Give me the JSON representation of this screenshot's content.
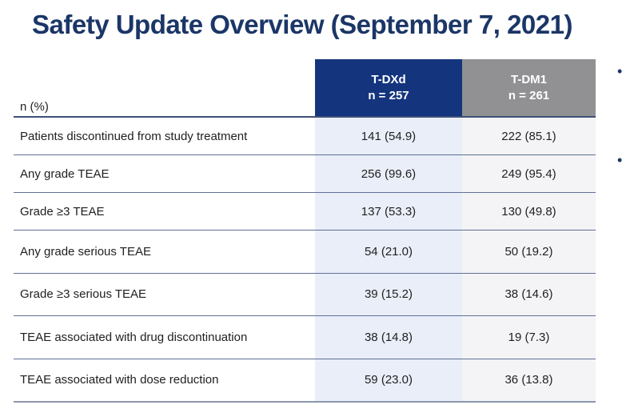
{
  "title": "Safety Update Overview (September 7, 2021)",
  "table": {
    "row_header_label": "n (%)",
    "columns": [
      {
        "label": "T-DXd",
        "n_label": "n = 257"
      },
      {
        "label": "T-DM1",
        "n_label": "n = 261"
      }
    ],
    "rows": [
      {
        "label": "Patients discontinued from study treatment",
        "tdxd": "141 (54.9)",
        "tdm1": "222 (85.1)"
      },
      {
        "label": "Any grade TEAE",
        "tdxd": "256 (99.6)",
        "tdm1": "249 (95.4)"
      },
      {
        "label": "Grade ≥3 TEAE",
        "tdxd": "137 (53.3)",
        "tdm1": "130 (49.8)"
      },
      {
        "label": "Any grade serious TEAE",
        "tdxd": "54 (21.0)",
        "tdm1": "50 (19.2)"
      },
      {
        "label": "Grade ≥3 serious TEAE",
        "tdxd": "39 (15.2)",
        "tdm1": "38 (14.6)"
      },
      {
        "label": "TEAE associated with drug discontinuation",
        "tdxd": "38 (14.8)",
        "tdm1": "19 (7.3)"
      },
      {
        "label": "TEAE associated with dose reduction",
        "tdxd": "59 (23.0)",
        "tdm1": "36 (13.8)"
      }
    ]
  },
  "side_list": {
    "bullet_glyph": "•",
    "visible_bullet_count": 2
  },
  "colors": {
    "title": "#1b3667",
    "tdxd_header_bg": "#14357e",
    "tdm1_header_bg": "#919193",
    "tdxd_col_bg": "#e9eef8",
    "tdm1_col_bg": "#f4f4f6",
    "header_line": "#3f5078",
    "row_line": "#5f6f96",
    "bottom_line": "#8c96ad",
    "bullet": "#1a3568"
  }
}
